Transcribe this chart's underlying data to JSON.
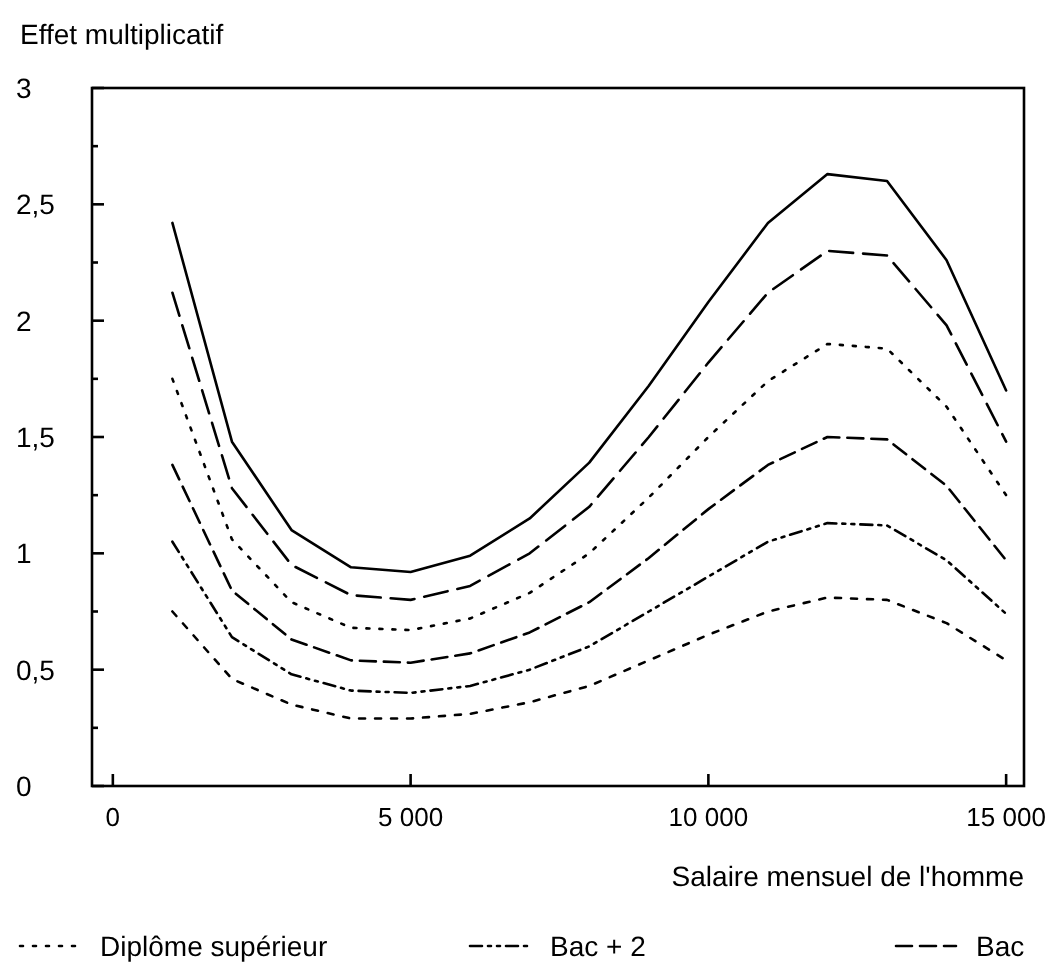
{
  "chart_data": {
    "type": "line",
    "ylabel": "Effet multiplicatif",
    "xlabel": "Salaire mensuel de l'homme",
    "x": [
      1000,
      2000,
      3000,
      4000,
      5000,
      6000,
      7000,
      8000,
      9000,
      10000,
      11000,
      12000,
      13000,
      14000,
      15000
    ],
    "xlim": [
      -350,
      15300
    ],
    "ylim": [
      0,
      3
    ],
    "xticks": [
      0,
      {
        "value": 5000,
        "label": "5 000"
      },
      {
        "value": 10000,
        "label": "10 000"
      },
      {
        "value": 15000,
        "label": "15 000"
      }
    ],
    "yticks": [
      0,
      {
        "value": 0.25,
        "label": null
      },
      {
        "value": 0.5,
        "label": "0,5"
      },
      {
        "value": 0.75,
        "label": null
      },
      1,
      {
        "value": 1.25,
        "label": null
      },
      {
        "value": 1.5,
        "label": "1,5"
      },
      {
        "value": 1.75,
        "label": null
      },
      2,
      {
        "value": 2.25,
        "label": null
      },
      {
        "value": 2.5,
        "label": "2,5"
      },
      {
        "value": 2.75,
        "label": null
      },
      3
    ],
    "grid": false,
    "legend": "bottom",
    "marker": "none",
    "series": [
      {
        "color": "#000000",
        "line_style": "solid",
        "values": [
          2.42,
          1.48,
          1.1,
          0.94,
          0.92,
          0.99,
          1.15,
          1.39,
          1.72,
          2.08,
          2.42,
          2.63,
          2.6,
          2.26,
          1.7
        ]
      },
      {
        "color": "#000000",
        "line_style": "longdashed",
        "values": [
          2.12,
          1.28,
          0.95,
          0.82,
          0.8,
          0.86,
          1.0,
          1.2,
          1.5,
          1.82,
          2.12,
          2.3,
          2.28,
          1.98,
          1.48
        ]
      },
      {
        "name": "Diplôme supérieur",
        "color": "#000000",
        "line_style": "dotted",
        "values": [
          1.75,
          1.06,
          0.79,
          0.68,
          0.67,
          0.72,
          0.83,
          1.0,
          1.24,
          1.5,
          1.74,
          1.9,
          1.88,
          1.63,
          1.25
        ]
      },
      {
        "name": "Bac + 2",
        "color": "#000000",
        "line_style": "dashdotdot",
        "values": [
          1.05,
          0.64,
          0.48,
          0.41,
          0.4,
          0.43,
          0.5,
          0.6,
          0.75,
          0.9,
          1.05,
          1.13,
          1.12,
          0.97,
          0.74
        ]
      },
      {
        "name": "Bac",
        "color": "#000000",
        "line_style": "dashed",
        "values": [
          1.38,
          0.84,
          0.63,
          0.54,
          0.53,
          0.57,
          0.66,
          0.79,
          0.98,
          1.19,
          1.38,
          1.5,
          1.49,
          1.29,
          0.97
        ]
      },
      {
        "color": "#000000",
        "line_style": "shortdashed",
        "values": [
          0.75,
          0.46,
          0.35,
          0.29,
          0.29,
          0.31,
          0.36,
          0.43,
          0.54,
          0.65,
          0.75,
          0.81,
          0.8,
          0.7,
          0.54
        ]
      }
    ]
  }
}
